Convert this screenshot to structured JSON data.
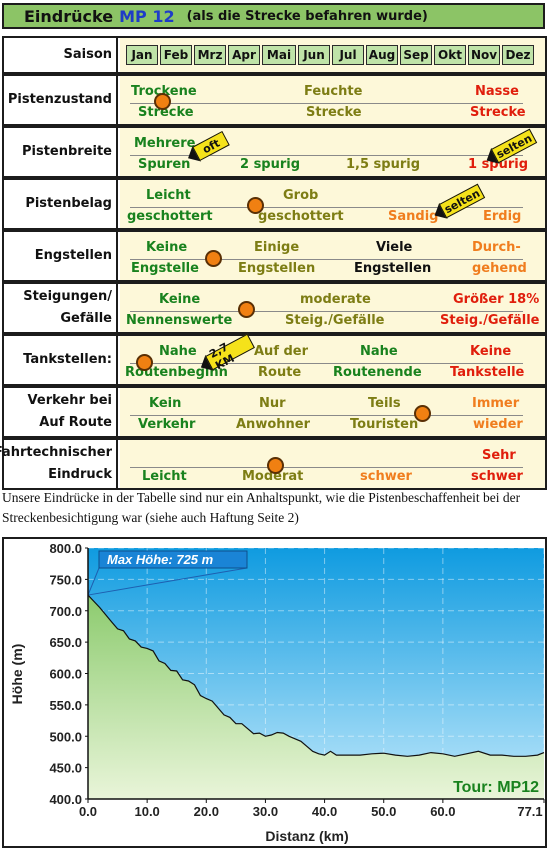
{
  "header": {
    "title": "Eindrücke",
    "route": "MP 12",
    "subtitle": "(als die Strecke befahren wurde)"
  },
  "saison": {
    "label": "Saison",
    "months": [
      "Jan",
      "Feb",
      "Mrz",
      "Apr",
      "Mai",
      "Jun",
      "Jul",
      "Aug",
      "Sep",
      "Okt",
      "Nov",
      "Dez"
    ]
  },
  "rows": {
    "pistenzustand": {
      "label": "Pistenzustand",
      "c1a": "Trockene",
      "c1b": "Strecke",
      "c2a": "Feuchte",
      "c2b": "Strecke",
      "c3a": "Nasse",
      "c3b": "Strecke"
    },
    "pistenbreite": {
      "label": "Pistenbreite",
      "c1a": "Mehrere",
      "c1b": "Spuren",
      "c2": "2 spurig",
      "c3": "1,5 spurig",
      "c4": "1 spurig",
      "flag1": "oft",
      "flag2": "selten"
    },
    "pistenbelag": {
      "label": "Pistenbelag",
      "c1a": "Leicht",
      "c1b": "geschottert",
      "c2a": "Grob",
      "c2b": "geschottert",
      "c3": "Sandig",
      "c4": "Erdig",
      "flag": "selten"
    },
    "engstellen": {
      "label": "Engstellen",
      "c1a": "Keine",
      "c1b": "Engstelle",
      "c2a": "Einige",
      "c2b": "Engstellen",
      "c3a": "Viele",
      "c3b": "Engstellen",
      "c4a": "Durch-",
      "c4b": "gehend"
    },
    "steigungen": {
      "label1": "Steigungen/",
      "label2": "Gefälle",
      "c1a": "Keine",
      "c1b": "Nennenswerte",
      "c2a": "moderate",
      "c2b": "Steig./Gefälle",
      "c3a": "Größer 18%",
      "c3b": "Steig./Gefälle"
    },
    "tankstellen": {
      "label": "Tankstellen:",
      "c1a": "Nahe",
      "c1b": "Routenbeginn",
      "c2a": "Auf der",
      "c2b": "Route",
      "c3a": "Nahe",
      "c3b": "Routenende",
      "c4a": "Keine",
      "c4b": "Tankstelle",
      "flag": "2,7 KM"
    },
    "verkehr": {
      "label1": "Verkehr bei",
      "label2": "Auf Route",
      "c1a": "Kein",
      "c1b": "Verkehr",
      "c2a": "Nur",
      "c2b": "Anwohner",
      "c3a": "Teils",
      "c3b": "Touristen",
      "c4a": "Immer",
      "c4b": "wieder"
    },
    "fahrtechnisch": {
      "label1": "Fahrtechnischer",
      "label2": "Eindruck",
      "c1": "Leicht",
      "c2": "Moderat",
      "c3": "schwer",
      "c4a": "Sehr",
      "c4b": "schwer"
    }
  },
  "note": "Unsere Eindrücke in der Tabelle sind nur ein Anhaltspunkt, wie die Pistenbeschaffenheit bei der Streckenbesichtigung war (siehe auch Haftung Seite 2)",
  "chart_data": {
    "type": "area",
    "title": "",
    "xlabel": "Distanz (km)",
    "ylabel": "Höhe (m)",
    "xlim": [
      0,
      77.1
    ],
    "ylim": [
      400,
      800
    ],
    "xticks": [
      0,
      10,
      20,
      30,
      40,
      50,
      60,
      77.1
    ],
    "xtick_labels": [
      "0.0",
      "10.0",
      "20.0",
      "30.0",
      "40.0",
      "50.0",
      "60.0",
      "77.1"
    ],
    "yticks": [
      400,
      450,
      500,
      550,
      600,
      650,
      700,
      750,
      800
    ],
    "yticks_labels": [
      "400.0",
      "450.0",
      "500.0",
      "550.0",
      "600.0",
      "650.0",
      "700.0",
      "750.0",
      "800.0"
    ],
    "annotation": "Max Höhe: 725 m",
    "tour_label": "Tour: MP12",
    "x": [
      0,
      2,
      4,
      5,
      6,
      7,
      8,
      9,
      10,
      11,
      12,
      13,
      14,
      15,
      16,
      17,
      18,
      19,
      20,
      21,
      22,
      23,
      24,
      25,
      26,
      27,
      28,
      29,
      30,
      31,
      32,
      33,
      34,
      35,
      36,
      37,
      38,
      39,
      40,
      41,
      42,
      44,
      46,
      48,
      50,
      52,
      54,
      56,
      58,
      60,
      62,
      64,
      66,
      68,
      70,
      72,
      74,
      76,
      77.1
    ],
    "y": [
      725,
      705,
      682,
      671,
      668,
      655,
      652,
      642,
      640,
      636,
      620,
      616,
      605,
      604,
      590,
      588,
      582,
      565,
      560,
      556,
      545,
      534,
      530,
      520,
      520,
      512,
      504,
      505,
      500,
      502,
      506,
      505,
      500,
      496,
      492,
      484,
      476,
      472,
      470,
      476,
      470,
      470,
      470,
      472,
      473,
      470,
      468,
      470,
      474,
      472,
      468,
      472,
      476,
      470,
      470,
      468,
      468,
      470,
      474
    ]
  },
  "colors": {
    "header_bg": "#8cc466",
    "cell_bg": "#fdf8d9",
    "dot": "#f08012",
    "sky_top": "#0f9be0",
    "sky_bottom": "#bfe8fb",
    "area_top": "#8ccb6e",
    "area_bottom": "#e9f5d9"
  }
}
